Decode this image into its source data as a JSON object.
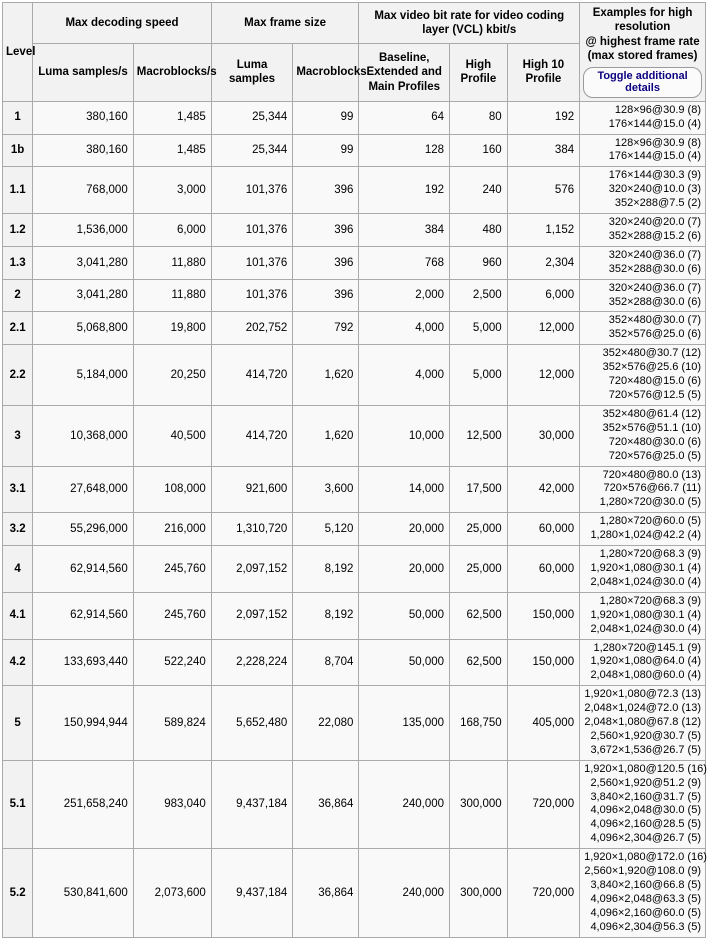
{
  "colors": {
    "table_background": "#f9f9f9",
    "header_background": "#f2f2f2",
    "border": "#aaaaaa",
    "toggle_text": "#0b0080"
  },
  "table": {
    "header": {
      "level": "Level",
      "groups": [
        {
          "label": "Max decoding speed"
        },
        {
          "label": "Max frame size"
        },
        {
          "label": "Max video bit rate for video coding layer (VCL) kbit/s"
        }
      ],
      "subcolumns": [
        "Luma samples/s",
        "Macroblocks/s",
        "Luma samples",
        "Macroblocks",
        "Baseline, Extended and Main Profiles",
        "High Profile",
        "High 10 Profile"
      ],
      "examples_line1": "Examples for high resolution",
      "examples_line2": "@ highest frame rate",
      "examples_line3": "(max stored frames)",
      "toggle_button_label": "Toggle additional details"
    },
    "rows": [
      {
        "level": "1",
        "values": [
          "380,160",
          "1,485",
          "25,344",
          "99",
          "64",
          "80",
          "192"
        ],
        "examples": [
          "128×96@30.9 (8)",
          "176×144@15.0 (4)"
        ]
      },
      {
        "level": "1b",
        "values": [
          "380,160",
          "1,485",
          "25,344",
          "99",
          "128",
          "160",
          "384"
        ],
        "examples": [
          "128×96@30.9 (8)",
          "176×144@15.0 (4)"
        ]
      },
      {
        "level": "1.1",
        "values": [
          "768,000",
          "3,000",
          "101,376",
          "396",
          "192",
          "240",
          "576"
        ],
        "examples": [
          "176×144@30.3 (9)",
          "320×240@10.0 (3)",
          "352×288@7.5 (2)"
        ]
      },
      {
        "level": "1.2",
        "values": [
          "1,536,000",
          "6,000",
          "101,376",
          "396",
          "384",
          "480",
          "1,152"
        ],
        "examples": [
          "320×240@20.0 (7)",
          "352×288@15.2 (6)"
        ]
      },
      {
        "level": "1.3",
        "values": [
          "3,041,280",
          "11,880",
          "101,376",
          "396",
          "768",
          "960",
          "2,304"
        ],
        "examples": [
          "320×240@36.0 (7)",
          "352×288@30.0 (6)"
        ]
      },
      {
        "level": "2",
        "values": [
          "3,041,280",
          "11,880",
          "101,376",
          "396",
          "2,000",
          "2,500",
          "6,000"
        ],
        "examples": [
          "320×240@36.0 (7)",
          "352×288@30.0 (6)"
        ]
      },
      {
        "level": "2.1",
        "values": [
          "5,068,800",
          "19,800",
          "202,752",
          "792",
          "4,000",
          "5,000",
          "12,000"
        ],
        "examples": [
          "352×480@30.0 (7)",
          "352×576@25.0 (6)"
        ]
      },
      {
        "level": "2.2",
        "values": [
          "5,184,000",
          "20,250",
          "414,720",
          "1,620",
          "4,000",
          "5,000",
          "12,000"
        ],
        "examples": [
          "352×480@30.7 (12)",
          "352×576@25.6 (10)",
          "720×480@15.0 (6)",
          "720×576@12.5 (5)"
        ]
      },
      {
        "level": "3",
        "values": [
          "10,368,000",
          "40,500",
          "414,720",
          "1,620",
          "10,000",
          "12,500",
          "30,000"
        ],
        "examples": [
          "352×480@61.4 (12)",
          "352×576@51.1 (10)",
          "720×480@30.0 (6)",
          "720×576@25.0 (5)"
        ]
      },
      {
        "level": "3.1",
        "values": [
          "27,648,000",
          "108,000",
          "921,600",
          "3,600",
          "14,000",
          "17,500",
          "42,000"
        ],
        "examples": [
          "720×480@80.0 (13)",
          "720×576@66.7 (11)",
          "1,280×720@30.0 (5)"
        ]
      },
      {
        "level": "3.2",
        "values": [
          "55,296,000",
          "216,000",
          "1,310,720",
          "5,120",
          "20,000",
          "25,000",
          "60,000"
        ],
        "examples": [
          "1,280×720@60.0 (5)",
          "1,280×1,024@42.2 (4)"
        ]
      },
      {
        "level": "4",
        "values": [
          "62,914,560",
          "245,760",
          "2,097,152",
          "8,192",
          "20,000",
          "25,000",
          "60,000"
        ],
        "examples": [
          "1,280×720@68.3 (9)",
          "1,920×1,080@30.1 (4)",
          "2,048×1,024@30.0 (4)"
        ]
      },
      {
        "level": "4.1",
        "values": [
          "62,914,560",
          "245,760",
          "2,097,152",
          "8,192",
          "50,000",
          "62,500",
          "150,000"
        ],
        "examples": [
          "1,280×720@68.3 (9)",
          "1,920×1,080@30.1 (4)",
          "2,048×1,024@30.0 (4)"
        ]
      },
      {
        "level": "4.2",
        "values": [
          "133,693,440",
          "522,240",
          "2,228,224",
          "8,704",
          "50,000",
          "62,500",
          "150,000"
        ],
        "examples": [
          "1,280×720@145.1 (9)",
          "1,920×1,080@64.0 (4)",
          "2,048×1,080@60.0 (4)"
        ]
      },
      {
        "level": "5",
        "values": [
          "150,994,944",
          "589,824",
          "5,652,480",
          "22,080",
          "135,000",
          "168,750",
          "405,000"
        ],
        "examples": [
          "1,920×1,080@72.3 (13)",
          "2,048×1,024@72.0 (13)",
          "2,048×1,080@67.8 (12)",
          "2,560×1,920@30.7 (5)",
          "3,672×1,536@26.7 (5)"
        ]
      },
      {
        "level": "5.1",
        "values": [
          "251,658,240",
          "983,040",
          "9,437,184",
          "36,864",
          "240,000",
          "300,000",
          "720,000"
        ],
        "examples": [
          "1,920×1,080@120.5 (16)",
          "2,560×1,920@51.2 (9)",
          "3,840×2,160@31.7 (5)",
          "4,096×2,048@30.0 (5)",
          "4,096×2,160@28.5 (5)",
          "4,096×2,304@26.7 (5)"
        ]
      },
      {
        "level": "5.2",
        "values": [
          "530,841,600",
          "2,073,600",
          "9,437,184",
          "36,864",
          "240,000",
          "300,000",
          "720,000"
        ],
        "examples": [
          "1,920×1,080@172.0 (16)",
          "2,560×1,920@108.0 (9)",
          "3,840×2,160@66.8 (5)",
          "4,096×2,048@63.3 (5)",
          "4,096×2,160@60.0 (5)",
          "4,096×2,304@56.3 (5)"
        ]
      }
    ]
  }
}
